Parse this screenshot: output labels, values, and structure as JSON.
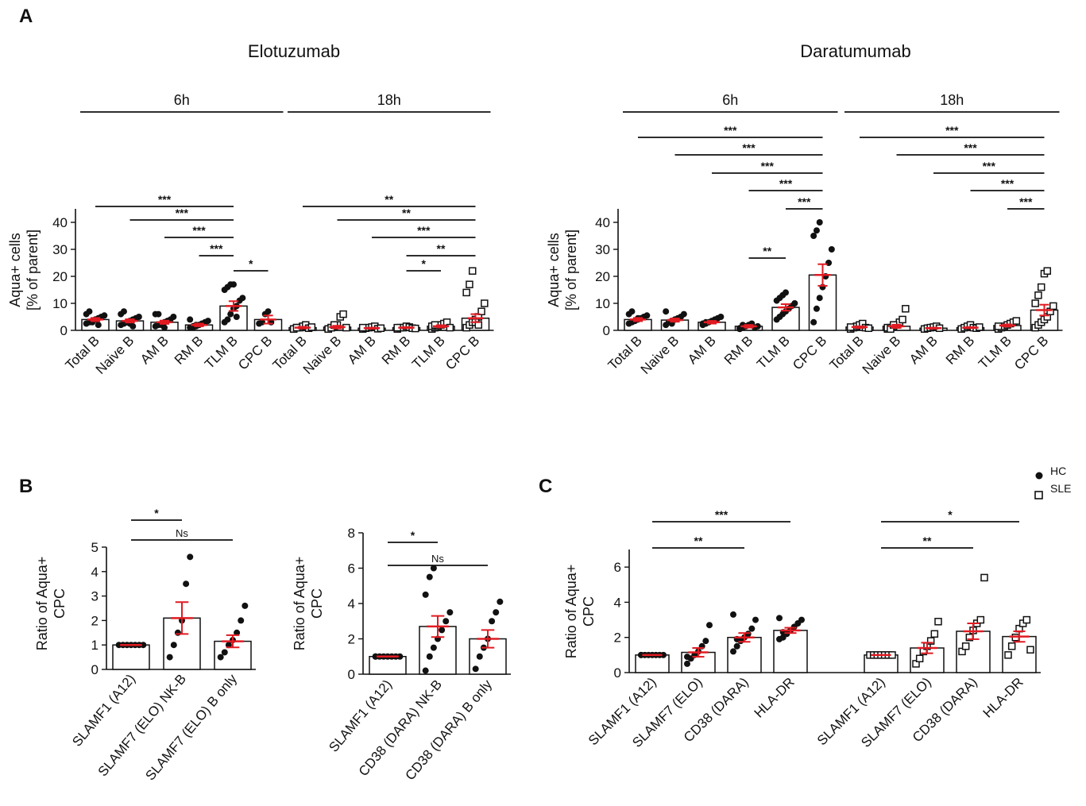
{
  "panel_labels": {
    "a": "A",
    "b": "B",
    "c": "C"
  },
  "legend": {
    "hc": "HC",
    "sle": "SLE"
  },
  "colors": {
    "bar_edge": "#111111",
    "mean_sem": "#e11b22",
    "point": "#111111"
  },
  "chart_data": [
    {
      "id": "A1",
      "type": "bar",
      "title": "Elotuzumab",
      "ylabel_line1": "Aqua+ cells",
      "ylabel_line2": "[% of parent]",
      "ylim": [
        0,
        45
      ],
      "yticks": [
        0,
        10,
        20,
        30,
        40
      ],
      "groups": [
        {
          "label": "6h",
          "marker": "circle",
          "categories": [
            "Total B",
            "Naive B",
            "AM B",
            "RM B",
            "TLM B",
            "CPC B"
          ],
          "means": [
            4,
            3.5,
            3,
            2,
            9,
            4
          ],
          "sems": [
            0.6,
            0.6,
            0.6,
            0.5,
            1.8,
            1.5
          ],
          "points": [
            [
              2.5,
              3,
              3.5,
              4,
              4.5,
              5,
              5.5,
              6,
              7,
              3,
              4,
              2
            ],
            [
              2,
              2.5,
              3,
              3.5,
              4,
              4.5,
              5,
              6,
              7,
              3,
              2.5,
              1.5
            ],
            [
              1.5,
              2,
              2.5,
              3,
              3.5,
              4,
              5,
              6,
              6,
              2,
              1
            ],
            [
              1,
              1.5,
              2,
              2,
              2.5,
              3,
              3.5,
              4,
              1,
              1.5,
              2
            ],
            [
              3,
              4,
              6,
              8,
              9,
              11,
              12,
              15,
              16,
              17,
              17,
              5
            ],
            [
              2.5,
              3,
              6,
              7,
              3
            ]
          ]
        },
        {
          "label": "18h",
          "marker": "square",
          "categories": [
            "Total B",
            "Naive B",
            "AM B",
            "RM B",
            "TLM B",
            "CPC B"
          ],
          "means": [
            1,
            1.2,
            0.8,
            1,
            1.5,
            4.5
          ],
          "sems": [
            0.3,
            0.5,
            0.2,
            0.2,
            0.4,
            1.5
          ],
          "points": [
            [
              0.5,
              1,
              1,
              1.5,
              2,
              0.8,
              1.2,
              0.5,
              1
            ],
            [
              0.5,
              1,
              1.5,
              2,
              5,
              6,
              1,
              0.5,
              1,
              2
            ],
            [
              0.5,
              0.8,
              1,
              1.2,
              1.5,
              0.6,
              0.8,
              1
            ],
            [
              0.5,
              1,
              1,
              1.5,
              1.2,
              0.8,
              0.7,
              1
            ],
            [
              0.5,
              1,
              1.5,
              2,
              2.5,
              3,
              1,
              1.5,
              2
            ],
            [
              1,
              2,
              3,
              4,
              5,
              7,
              10,
              14,
              17,
              22,
              3,
              2
            ]
          ]
        }
      ],
      "comparisons": [
        {
          "from": 0,
          "to": 4,
          "label": "***"
        },
        {
          "from": 1,
          "to": 4,
          "label": "***"
        },
        {
          "from": 2,
          "to": 4,
          "label": "***"
        },
        {
          "from": 3,
          "to": 4,
          "label": "***"
        },
        {
          "from": 4,
          "to": 5,
          "label": "*"
        },
        {
          "from": 6,
          "to": 11,
          "label": "**"
        },
        {
          "from": 7,
          "to": 11,
          "label": "**"
        },
        {
          "from": 8,
          "to": 11,
          "label": "***"
        },
        {
          "from": 9,
          "to": 11,
          "label": "**"
        },
        {
          "from": 9,
          "to": 10,
          "label": "*"
        }
      ]
    },
    {
      "id": "A2",
      "type": "bar",
      "title": "Daratumumab",
      "ylabel_line1": "Aqua+ cells",
      "ylabel_line2": "[% of parent]",
      "ylim": [
        0,
        45
      ],
      "yticks": [
        0,
        10,
        20,
        30,
        40
      ],
      "groups": [
        {
          "label": "6h",
          "marker": "circle",
          "categories": [
            "Total B",
            "Naive B",
            "AM B",
            "RM B",
            "TLM B",
            "CPC B"
          ],
          "means": [
            4,
            3.8,
            3,
            1.5,
            8.5,
            20.5
          ],
          "sems": [
            0.6,
            0.6,
            0.5,
            0.5,
            1.2,
            4
          ],
          "points": [
            [
              2.5,
              3,
              3.5,
              4,
              4.5,
              5,
              5.5,
              6,
              7,
              3.5,
              4.5
            ],
            [
              2,
              3,
              3.5,
              4,
              4.5,
              5,
              6,
              7,
              3,
              2.5,
              4
            ],
            [
              2,
              2.5,
              3,
              3.5,
              4,
              4.5,
              5,
              2.5,
              3
            ],
            [
              0.5,
              1,
              1.5,
              2,
              2.5,
              1,
              1.5,
              0.8,
              2
            ],
            [
              4,
              5,
              6,
              7,
              8,
              9,
              10,
              11,
              12,
              13,
              14
            ],
            [
              3,
              8,
              12,
              16,
              20,
              25,
              30,
              35,
              37,
              40
            ]
          ]
        },
        {
          "label": "18h",
          "marker": "square",
          "categories": [
            "Total B",
            "Naive B",
            "AM B",
            "RM B",
            "TLM B",
            "CPC B"
          ],
          "means": [
            1.2,
            1.5,
            0.8,
            1,
            1.8,
            7.5
          ],
          "sems": [
            0.3,
            0.6,
            0.2,
            0.2,
            0.4,
            2
          ],
          "points": [
            [
              0.5,
              1,
              1.5,
              2,
              2.5,
              1,
              0.8,
              1.2
            ],
            [
              0.5,
              1,
              1.5,
              2,
              3,
              4,
              8,
              1,
              0.5,
              2
            ],
            [
              0.5,
              0.8,
              1,
              1.2,
              1.5,
              0.8
            ],
            [
              0.5,
              1,
              1.5,
              2,
              1,
              0.8,
              1.2
            ],
            [
              0.5,
              1,
              1.5,
              2,
              2.5,
              3,
              3.5,
              1.5
            ],
            [
              1,
              2,
              3,
              4,
              5,
              7,
              9,
              10,
              13,
              16,
              21,
              22
            ]
          ]
        }
      ],
      "comparisons": [
        {
          "from": 0,
          "to": 5,
          "label": "***"
        },
        {
          "from": 1,
          "to": 5,
          "label": "***"
        },
        {
          "from": 2,
          "to": 5,
          "label": "***"
        },
        {
          "from": 3,
          "to": 5,
          "label": "***"
        },
        {
          "from": 4,
          "to": 5,
          "label": "***"
        },
        {
          "from": 3,
          "to": 4,
          "label": "**"
        },
        {
          "from": 6,
          "to": 11,
          "label": "***"
        },
        {
          "from": 7,
          "to": 11,
          "label": "***"
        },
        {
          "from": 8,
          "to": 11,
          "label": "***"
        },
        {
          "from": 9,
          "to": 11,
          "label": "***"
        },
        {
          "from": 10,
          "to": 11,
          "label": "***"
        }
      ]
    },
    {
      "id": "B1",
      "type": "bar",
      "ylabel_line1": "Ratio of Aqua+",
      "ylabel_line2": "CPC",
      "ylim": [
        0,
        5
      ],
      "yticks": [
        0,
        1,
        2,
        3,
        4,
        5
      ],
      "groups": [
        {
          "label": "",
          "marker": "circle",
          "categories": [
            "SLAMF1 (A12)",
            "SLAMF7 (ELO) NK-B",
            "SLAMF7 (ELO) B only"
          ],
          "means": [
            1,
            2.1,
            1.15
          ],
          "sems": [
            0,
            0.65,
            0.25
          ],
          "points": [
            [
              1,
              1,
              1,
              1,
              1,
              1,
              1
            ],
            [
              0.5,
              1,
              1.5,
              2,
              3.5,
              4.6
            ],
            [
              0.5,
              0.7,
              1,
              1.2,
              1.5,
              2,
              2.6
            ]
          ]
        }
      ],
      "comparisons": [
        {
          "from": 0,
          "to": 1,
          "label": "*"
        },
        {
          "from": 0,
          "to": 2,
          "label": "Ns"
        }
      ]
    },
    {
      "id": "B2",
      "type": "bar",
      "ylabel_line1": "Ratio of Aqua+",
      "ylabel_line2": "CPC",
      "ylim": [
        0,
        8
      ],
      "yticks": [
        0,
        2,
        4,
        6,
        8
      ],
      "groups": [
        {
          "label": "",
          "marker": "circle",
          "categories": [
            "SLAMF1 (A12)",
            "CD38 (DARA) NK-B",
            "CD38 (DARA) B only"
          ],
          "means": [
            1,
            2.7,
            2
          ],
          "sems": [
            0,
            0.6,
            0.5
          ],
          "points": [
            [
              1,
              1,
              1,
              1,
              1,
              1,
              1,
              1
            ],
            [
              0.2,
              1,
              1.5,
              2,
              2.5,
              3,
              3.5,
              4.5,
              5.5,
              6
            ],
            [
              0.3,
              1,
              1.5,
              2,
              3,
              3.5,
              4.1
            ]
          ]
        }
      ],
      "comparisons": [
        {
          "from": 0,
          "to": 1,
          "label": "*"
        },
        {
          "from": 0,
          "to": 2,
          "label": "Ns"
        }
      ]
    },
    {
      "id": "C",
      "type": "bar",
      "ylabel_line1": "Ratio of Aqua+",
      "ylabel_line2": "CPC",
      "ylim": [
        0,
        7
      ],
      "yticks": [
        0,
        2,
        4,
        6
      ],
      "groups": [
        {
          "label": "HC",
          "marker": "circle",
          "categories": [
            "SLAMF1 (A12)",
            "SLAMF7 (ELO)",
            "CD38 (DARA)",
            "HLA-DR"
          ],
          "means": [
            1,
            1.15,
            2,
            2.4
          ],
          "sems": [
            0,
            0.25,
            0.25,
            0.15
          ],
          "points": [
            [
              1,
              1,
              1,
              1,
              1,
              1,
              1,
              1
            ],
            [
              0.5,
              0.8,
              1,
              1.2,
              1.5,
              1.8,
              2.7,
              0.9
            ],
            [
              1.2,
              1.5,
              1.8,
              2,
              2.2,
              2.5,
              3,
              3.3,
              1.9
            ],
            [
              1.9,
              2,
              2.2,
              2.4,
              2.6,
              2.8,
              3,
              3.1,
              2.3
            ]
          ]
        },
        {
          "label": "SLE",
          "marker": "square",
          "categories": [
            "SLAMF1 (A12)",
            "SLAMF7 (ELO)",
            "CD38 (DARA)",
            "HLA-DR"
          ],
          "means": [
            1,
            1.4,
            2.35,
            2.05
          ],
          "sems": [
            0,
            0.3,
            0.45,
            0.3
          ],
          "points": [
            [
              1,
              1,
              1,
              1,
              1,
              1,
              1
            ],
            [
              0.5,
              0.8,
              1.2,
              1.5,
              1.8,
              2.2,
              2.9
            ],
            [
              1.2,
              1.5,
              2,
              2.4,
              2.8,
              3,
              5.4
            ],
            [
              1,
              1.5,
              2,
              2.5,
              2.8,
              3,
              1.3
            ]
          ]
        }
      ],
      "comparisons": [
        {
          "from": 0,
          "to": 3,
          "label": "***"
        },
        {
          "from": 0,
          "to": 2,
          "label": "**"
        },
        {
          "from": 4,
          "to": 7,
          "label": "*"
        },
        {
          "from": 4,
          "to": 6,
          "label": "**"
        }
      ]
    }
  ]
}
